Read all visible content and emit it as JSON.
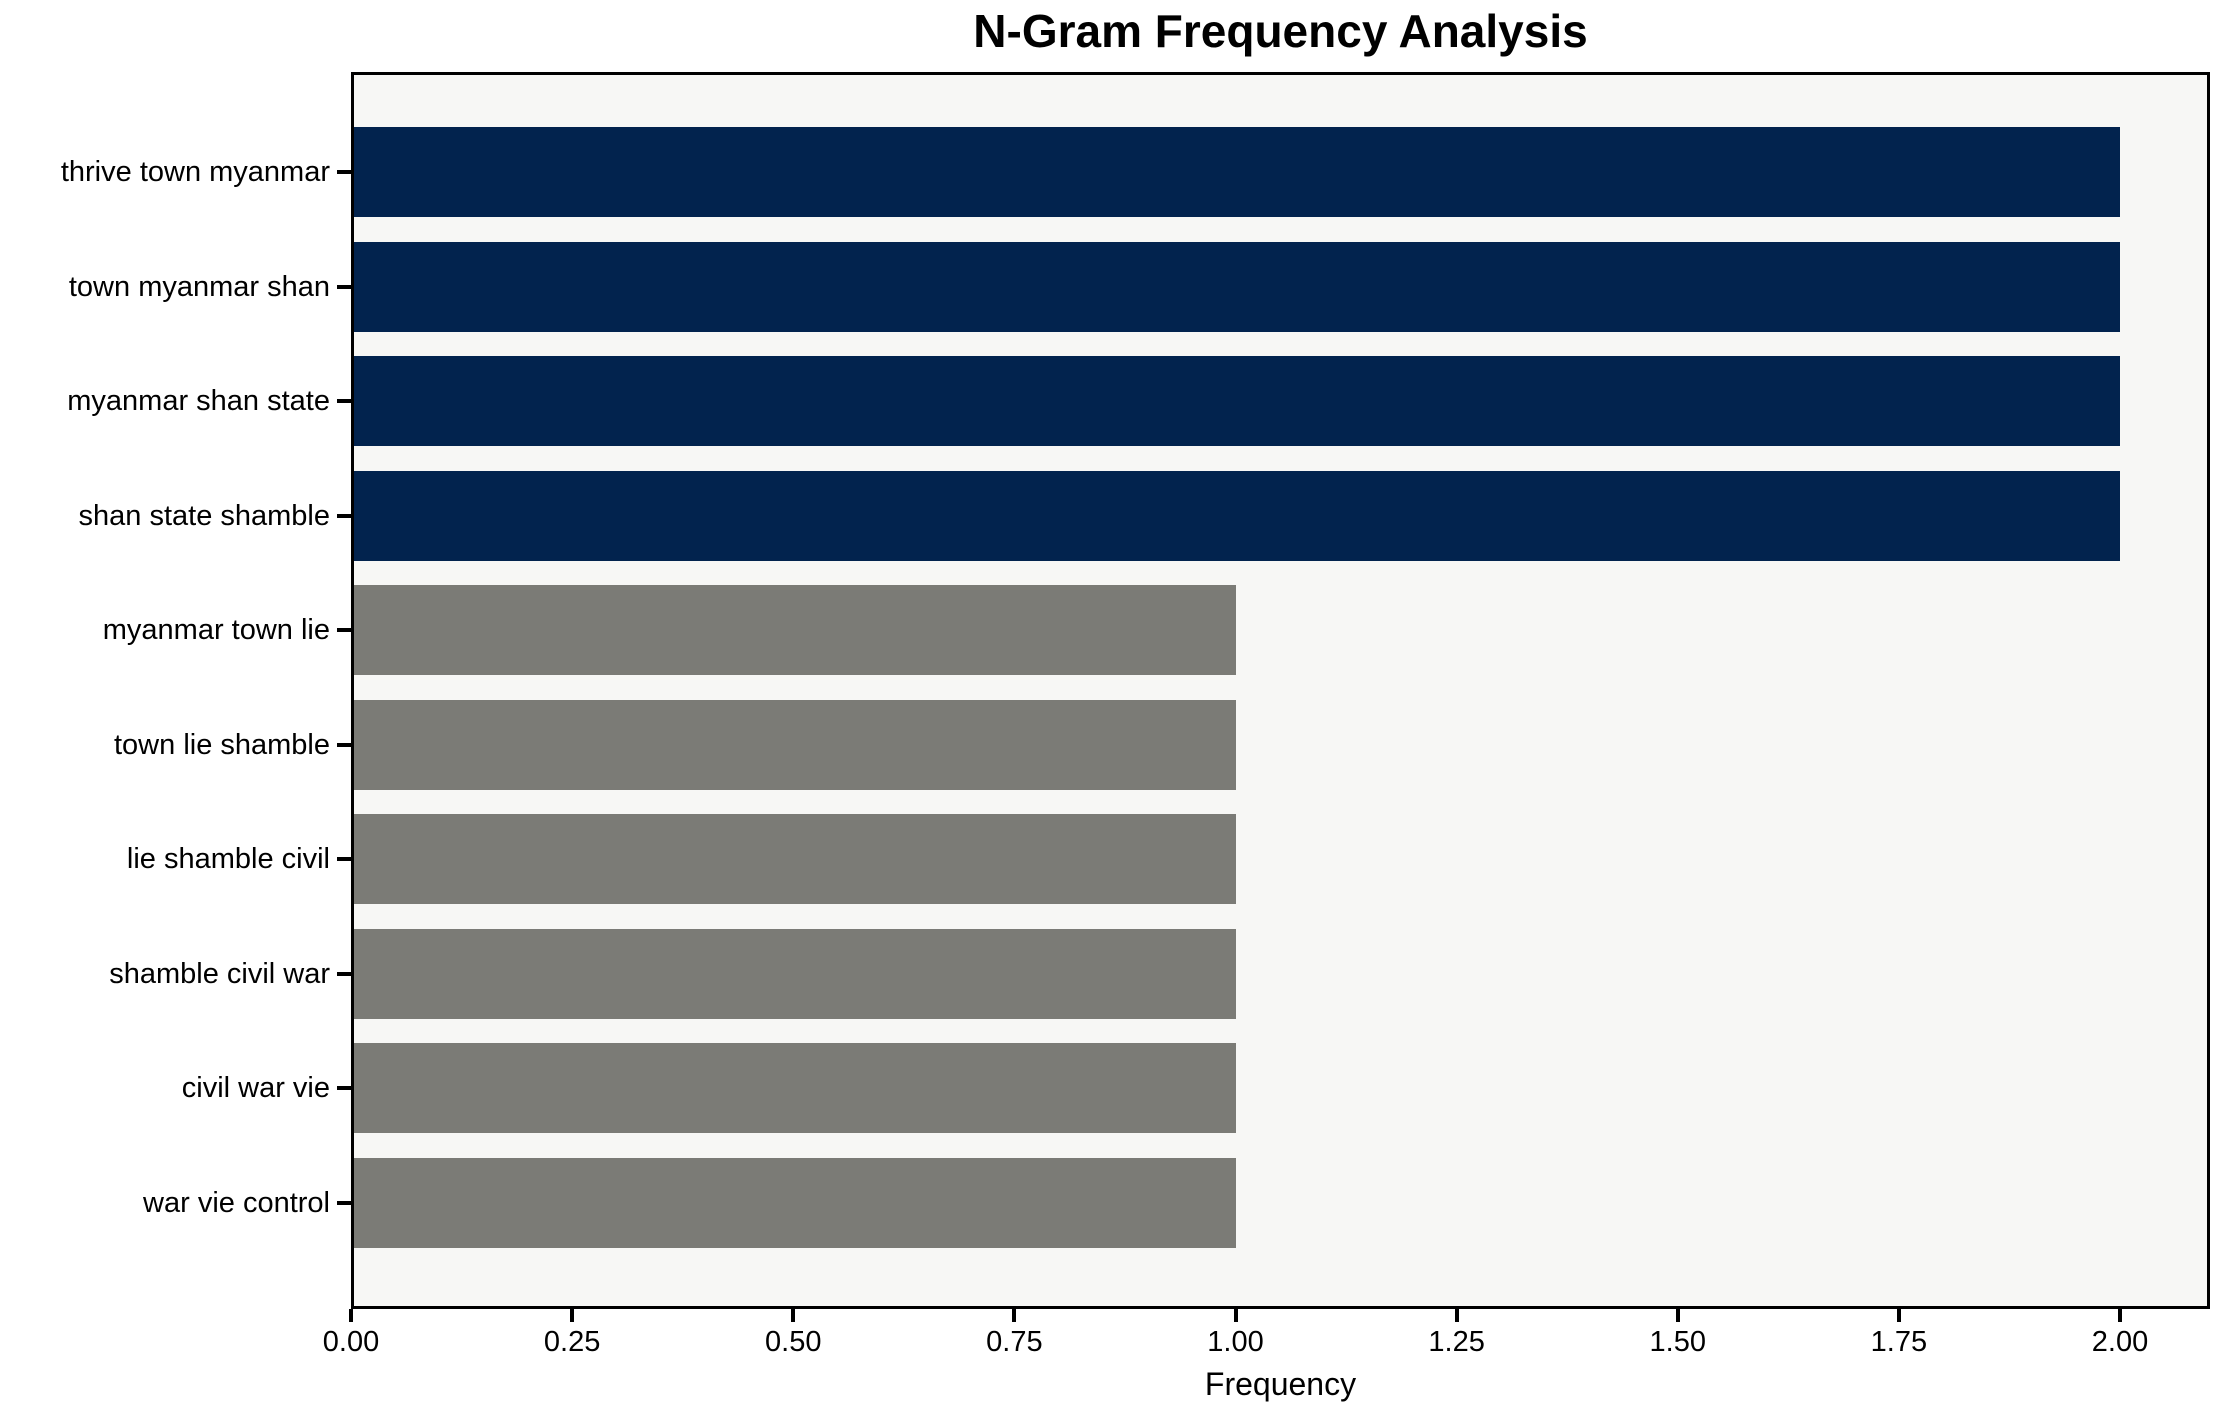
{
  "chart_data": {
    "type": "bar",
    "orientation": "horizontal",
    "title": "N-Gram Frequency Analysis",
    "xlabel": "Frequency",
    "ylabel": "",
    "categories": [
      "thrive town myanmar",
      "town myanmar shan",
      "myanmar shan state",
      "shan state shamble",
      "myanmar town lie",
      "town lie shamble",
      "lie shamble civil",
      "shamble civil war",
      "civil war vie",
      "war vie control"
    ],
    "values": [
      2,
      2,
      2,
      2,
      1,
      1,
      1,
      1,
      1,
      1
    ],
    "bar_colors": [
      "#02234e",
      "#02234e",
      "#02234e",
      "#02234e",
      "#7b7b76",
      "#7b7b76",
      "#7b7b76",
      "#7b7b76",
      "#7b7b76",
      "#7b7b76"
    ],
    "xlim": [
      0,
      2.1
    ],
    "xticks": [
      {
        "value": 0.0,
        "label": "0.00"
      },
      {
        "value": 0.25,
        "label": "0.25"
      },
      {
        "value": 0.5,
        "label": "0.50"
      },
      {
        "value": 0.75,
        "label": "0.75"
      },
      {
        "value": 1.0,
        "label": "1.00"
      },
      {
        "value": 1.25,
        "label": "1.25"
      },
      {
        "value": 1.5,
        "label": "1.50"
      },
      {
        "value": 1.75,
        "label": "1.75"
      },
      {
        "value": 2.0,
        "label": "2.00"
      }
    ],
    "grid": false,
    "legend": null,
    "colors": {
      "highlight_bar": "#02234e",
      "default_bar": "#7b7b76",
      "plot_background": "#f7f7f5",
      "figure_background": "#ffffff",
      "axis": "#000000"
    }
  }
}
